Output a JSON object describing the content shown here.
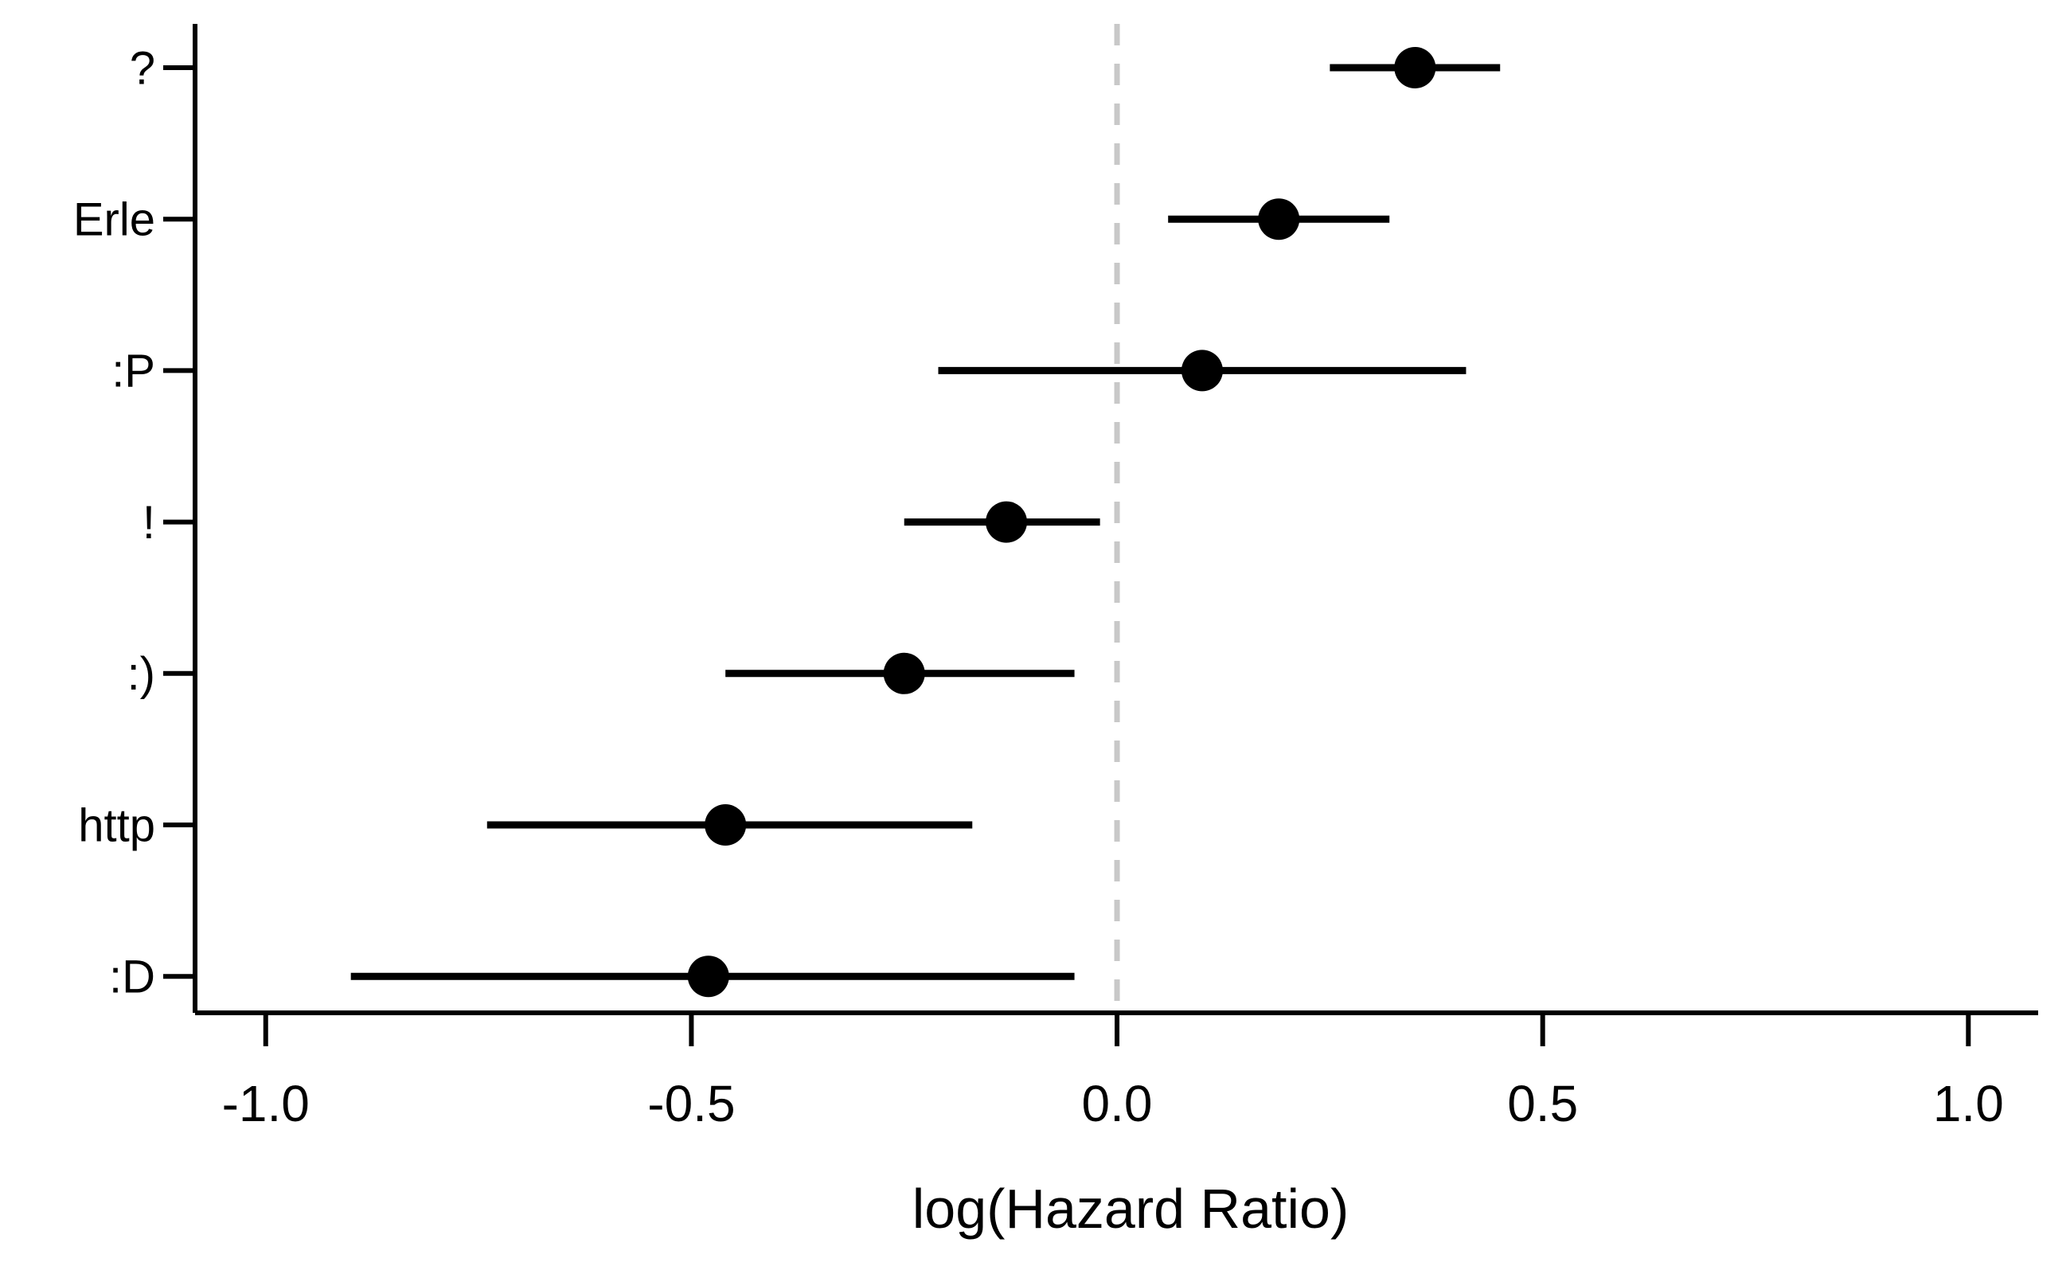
{
  "chart_data": {
    "type": "scatter",
    "subtype": "forest-plot-points-with-error-bars",
    "title": "",
    "xlabel": "log(Hazard Ratio)",
    "ylabel": "",
    "categories": [
      "?",
      "Erle",
      ":P",
      "!",
      ":)",
      "http",
      ":D"
    ],
    "points": [
      {
        "label": "?",
        "estimate": 0.35,
        "ci_low": 0.25,
        "ci_high": 0.45
      },
      {
        "label": "Erle",
        "estimate": 0.19,
        "ci_low": 0.06,
        "ci_high": 0.32
      },
      {
        "label": ":P",
        "estimate": 0.1,
        "ci_low": -0.21,
        "ci_high": 0.41
      },
      {
        "label": "!",
        "estimate": -0.13,
        "ci_low": -0.25,
        "ci_high": -0.02
      },
      {
        "label": ":)",
        "estimate": -0.25,
        "ci_low": -0.46,
        "ci_high": -0.05
      },
      {
        "label": "http",
        "estimate": -0.46,
        "ci_low": -0.74,
        "ci_high": -0.17
      },
      {
        "label": ":D",
        "estimate": -0.48,
        "ci_low": -0.9,
        "ci_high": -0.05
      }
    ],
    "x_ticks": [
      {
        "value": -1.0,
        "label": "-1.0"
      },
      {
        "value": -0.5,
        "label": "-0.5"
      },
      {
        "value": 0.0,
        "label": "0.0"
      },
      {
        "value": 0.5,
        "label": "0.5"
      },
      {
        "value": 1.0,
        "label": "1.0"
      }
    ],
    "xlim": [
      -1.083,
      1.082
    ],
    "reference_line": {
      "x": 0.0,
      "style": "dashed",
      "color": "#c8c8c8"
    },
    "grid": false,
    "legend": "none",
    "colors": {
      "point": "#000000",
      "ci_line": "#000000",
      "axis": "#000000",
      "text": "#000000",
      "background": "#ffffff"
    }
  }
}
